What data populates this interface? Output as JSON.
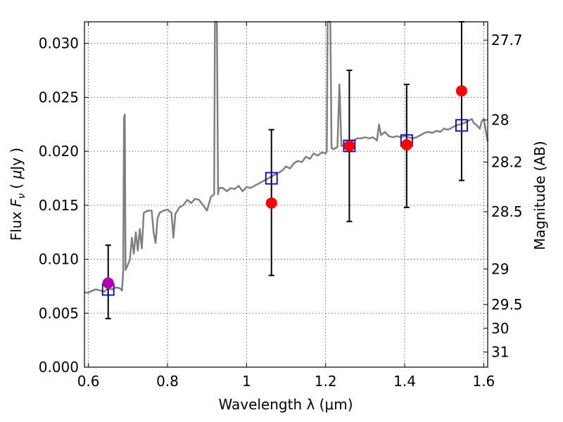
{
  "chart_data": {
    "type": "scatter",
    "xlabel": "Wavelength  λ (μm)",
    "ylabel": "Flux  F_ν  ( μJy )",
    "ylabel_parts": [
      "Flux  ",
      "F",
      "ν",
      "  ( ",
      "μ",
      "Jy )"
    ],
    "ylabel_right": "Magnitude (AB)",
    "xlim": [
      0.59,
      1.61
    ],
    "ylim": [
      0.0,
      0.032
    ],
    "grid": true,
    "x_ticks": [
      0.6,
      0.8,
      1.0,
      1.2,
      1.4,
      1.6
    ],
    "x_tick_labels": [
      "0.6",
      "0.8",
      "1",
      "1.2",
      "1.4",
      "1.6"
    ],
    "y_ticks": [
      0.0,
      0.005,
      0.01,
      0.015,
      0.02,
      0.025,
      0.03
    ],
    "y_tick_labels": [
      "0.000",
      "0.005",
      "0.010",
      "0.015",
      "0.020",
      "0.025",
      "0.030"
    ],
    "mag_ticks": [
      {
        "label": "27.7",
        "flux": 0.0303
      },
      {
        "label": "28",
        "flux": 0.0229
      },
      {
        "label": "28.2",
        "flux": 0.019
      },
      {
        "label": "28.5",
        "flux": 0.0144
      },
      {
        "label": "29",
        "flux": 0.0091
      },
      {
        "label": "29.5",
        "flux": 0.0058
      },
      {
        "label": "30",
        "flux": 0.0036
      },
      {
        "label": "31",
        "flux": 0.0014
      }
    ],
    "spectrum": {
      "color": "#808080",
      "points": [
        [
          0.59,
          0.0069
        ],
        [
          0.6,
          0.0069
        ],
        [
          0.61,
          0.0071
        ],
        [
          0.62,
          0.0072
        ],
        [
          0.63,
          0.0071
        ],
        [
          0.64,
          0.007
        ],
        [
          0.65,
          0.0073
        ],
        [
          0.66,
          0.0072
        ],
        [
          0.67,
          0.0074
        ],
        [
          0.68,
          0.0073
        ],
        [
          0.685,
          0.0071
        ],
        [
          0.688,
          0.009
        ],
        [
          0.69,
          0.0231
        ],
        [
          0.692,
          0.0234
        ],
        [
          0.694,
          0.009
        ],
        [
          0.7,
          0.0095
        ],
        [
          0.705,
          0.01
        ],
        [
          0.71,
          0.012
        ],
        [
          0.715,
          0.0105
        ],
        [
          0.72,
          0.0125
        ],
        [
          0.725,
          0.0108
        ],
        [
          0.73,
          0.0128
        ],
        [
          0.735,
          0.011
        ],
        [
          0.74,
          0.0143
        ],
        [
          0.75,
          0.0145
        ],
        [
          0.76,
          0.0145
        ],
        [
          0.765,
          0.0125
        ],
        [
          0.77,
          0.0115
        ],
        [
          0.775,
          0.0138
        ],
        [
          0.78,
          0.0143
        ],
        [
          0.79,
          0.0145
        ],
        [
          0.8,
          0.0146
        ],
        [
          0.81,
          0.0143
        ],
        [
          0.815,
          0.012
        ],
        [
          0.82,
          0.0142
        ],
        [
          0.83,
          0.0148
        ],
        [
          0.84,
          0.015
        ],
        [
          0.85,
          0.0155
        ],
        [
          0.86,
          0.0152
        ],
        [
          0.87,
          0.0156
        ],
        [
          0.88,
          0.0155
        ],
        [
          0.89,
          0.015
        ],
        [
          0.9,
          0.0145
        ],
        [
          0.91,
          0.0158
        ],
        [
          0.918,
          0.016
        ],
        [
          0.92,
          0.032
        ],
        [
          0.925,
          0.032
        ],
        [
          0.928,
          0.016
        ],
        [
          0.93,
          0.0166
        ],
        [
          0.94,
          0.0166
        ],
        [
          0.95,
          0.0163
        ],
        [
          0.96,
          0.0166
        ],
        [
          0.97,
          0.0165
        ],
        [
          0.98,
          0.0168
        ],
        [
          0.99,
          0.0163
        ],
        [
          1.0,
          0.0167
        ],
        [
          1.01,
          0.0166
        ],
        [
          1.02,
          0.0168
        ],
        [
          1.03,
          0.017
        ],
        [
          1.04,
          0.0172
        ],
        [
          1.05,
          0.0174
        ],
        [
          1.06,
          0.0176
        ],
        [
          1.07,
          0.0178
        ],
        [
          1.08,
          0.018
        ],
        [
          1.09,
          0.0182
        ],
        [
          1.1,
          0.0186
        ],
        [
          1.11,
          0.0184
        ],
        [
          1.12,
          0.0189
        ],
        [
          1.13,
          0.0191
        ],
        [
          1.14,
          0.019
        ],
        [
          1.15,
          0.0195
        ],
        [
          1.16,
          0.0193
        ],
        [
          1.17,
          0.0198
        ],
        [
          1.18,
          0.0196
        ],
        [
          1.19,
          0.0199
        ],
        [
          1.2,
          0.0198
        ],
        [
          1.203,
          0.02
        ],
        [
          1.205,
          0.032
        ],
        [
          1.212,
          0.032
        ],
        [
          1.215,
          0.0203
        ],
        [
          1.22,
          0.0202
        ],
        [
          1.23,
          0.0204
        ],
        [
          1.235,
          0.0262
        ],
        [
          1.24,
          0.0205
        ],
        [
          1.25,
          0.0206
        ],
        [
          1.26,
          0.0208
        ],
        [
          1.27,
          0.021
        ],
        [
          1.28,
          0.0212
        ],
        [
          1.29,
          0.0212
        ],
        [
          1.3,
          0.0213
        ],
        [
          1.31,
          0.0212
        ],
        [
          1.32,
          0.0213
        ],
        [
          1.33,
          0.021
        ],
        [
          1.335,
          0.0225
        ],
        [
          1.34,
          0.0215
        ],
        [
          1.35,
          0.0218
        ],
        [
          1.36,
          0.0214
        ],
        [
          1.37,
          0.0213
        ],
        [
          1.38,
          0.0214
        ],
        [
          1.39,
          0.0213
        ],
        [
          1.4,
          0.0214
        ],
        [
          1.41,
          0.0213
        ],
        [
          1.42,
          0.0212
        ],
        [
          1.43,
          0.0213
        ],
        [
          1.44,
          0.0215
        ],
        [
          1.45,
          0.0217
        ],
        [
          1.46,
          0.0218
        ],
        [
          1.47,
          0.0217
        ],
        [
          1.48,
          0.0219
        ],
        [
          1.49,
          0.0218
        ],
        [
          1.5,
          0.0221
        ],
        [
          1.51,
          0.022
        ],
        [
          1.52,
          0.0222
        ],
        [
          1.53,
          0.0224
        ],
        [
          1.54,
          0.0225
        ],
        [
          1.55,
          0.0226
        ],
        [
          1.56,
          0.0228
        ],
        [
          1.57,
          0.023
        ],
        [
          1.575,
          0.0226
        ],
        [
          1.58,
          0.0225
        ],
        [
          1.59,
          0.0221
        ],
        [
          1.595,
          0.0228
        ],
        [
          1.6,
          0.023
        ],
        [
          1.61,
          0.0209
        ]
      ]
    },
    "model_points": {
      "color": "#0000cc",
      "marker": "square-open",
      "points": [
        [
          0.65,
          0.0072
        ],
        [
          1.063,
          0.0175
        ],
        [
          1.26,
          0.0205
        ],
        [
          1.405,
          0.021
        ],
        [
          1.544,
          0.0224
        ]
      ]
    },
    "observed_points": {
      "color": "#ff0000",
      "marker": "circle",
      "points": [
        {
          "x": 1.063,
          "y": 0.0152,
          "err_low": 0.0085,
          "err_high": 0.022
        },
        {
          "x": 1.26,
          "y": 0.0205,
          "err_low": 0.0135,
          "err_high": 0.0275
        },
        {
          "x": 1.405,
          "y": 0.0206,
          "err_low": 0.0148,
          "err_high": 0.0262
        },
        {
          "x": 1.544,
          "y": 0.0256,
          "err_low": 0.0173,
          "err_high": 0.032
        }
      ]
    },
    "optical_point": {
      "color": "#b000b0",
      "marker": "circle",
      "x": 0.65,
      "y": 0.0078,
      "err_low": 0.0045,
      "err_high": 0.0113
    }
  }
}
